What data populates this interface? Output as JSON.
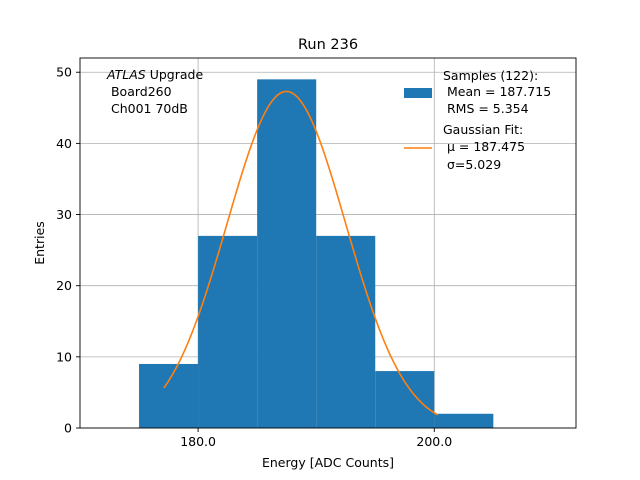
{
  "chart_data": {
    "type": "bar",
    "title": "Run 236",
    "xlabel": "Energy [ADC Counts]",
    "ylabel": "Entries",
    "xlim": [
      170,
      212
    ],
    "ylim": [
      0,
      52
    ],
    "x_ticks": [
      180.0,
      200.0
    ],
    "x_tick_labels": [
      "180.0",
      "200.0"
    ],
    "y_ticks": [
      0,
      10,
      20,
      30,
      40,
      50
    ],
    "y_tick_labels": [
      "0",
      "10",
      "20",
      "30",
      "40",
      "50"
    ],
    "grid": true,
    "histogram": {
      "bin_edges": [
        175,
        180,
        185,
        190,
        195,
        200,
        205
      ],
      "counts": [
        9,
        27,
        49,
        27,
        8,
        2
      ],
      "color": "#1f77b4"
    },
    "gaussian_fit": {
      "mu": 187.475,
      "sigma": 5.029,
      "amplitude": 47.3,
      "x_range": [
        177.1,
        200.3
      ],
      "color": "#ff7f0e"
    },
    "annotation": {
      "line1_italic": "ATLAS",
      "line1_rest": " Upgrade",
      "line2": " Board260",
      "line3": " Ch001 70dB"
    },
    "legend": {
      "placement": "top-right",
      "samples_lines": [
        "Samples (122):",
        " Mean = 187.715",
        " RMS = 5.354"
      ],
      "fit_lines": [
        "Gaussian Fit:",
        " μ = 187.475",
        " σ=5.029"
      ]
    }
  }
}
